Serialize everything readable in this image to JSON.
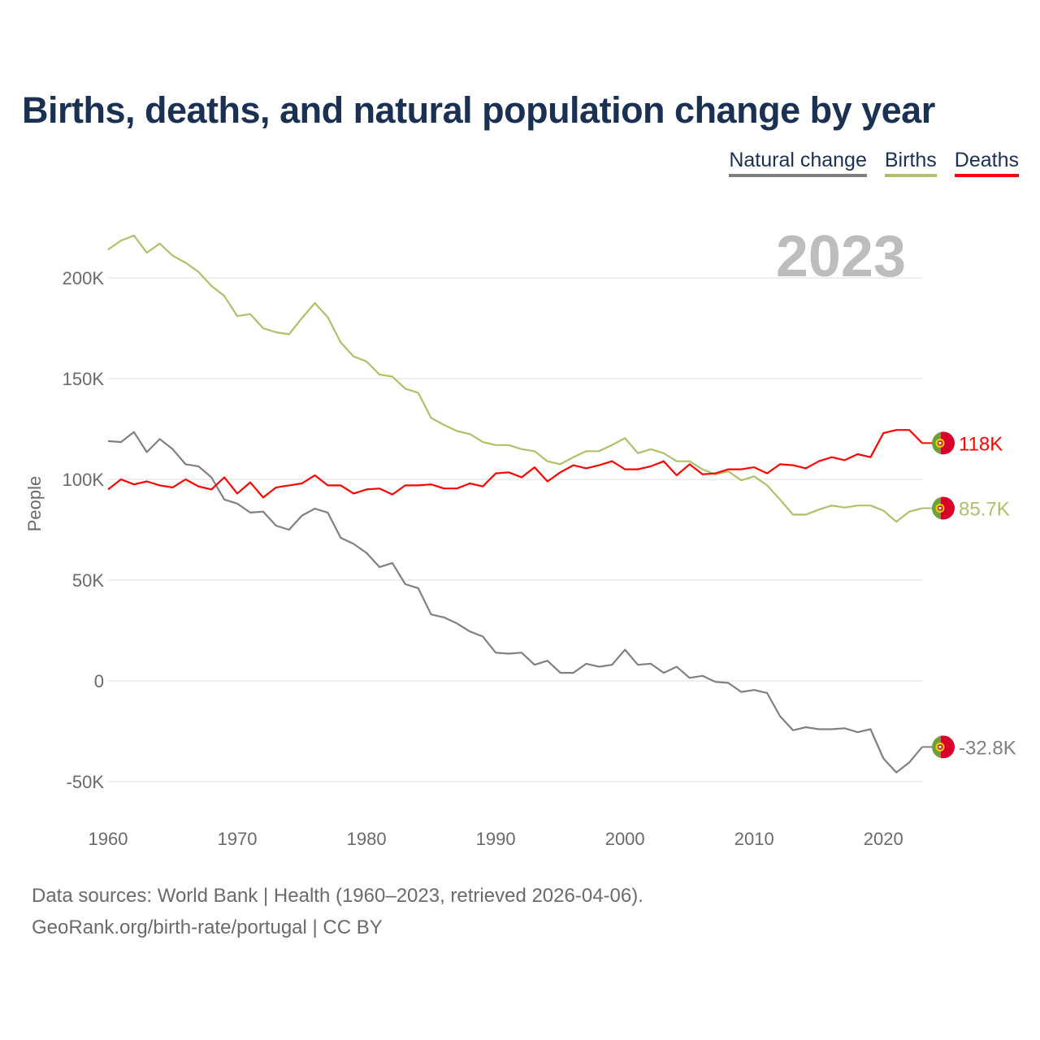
{
  "chart_data": {
    "type": "line",
    "title": "Births, deaths, and natural population change by year",
    "xlabel": "",
    "ylabel": "People",
    "ylim": [
      -50000,
      200000
    ],
    "xlim": [
      1960,
      2023
    ],
    "yticks": [
      {
        "v": -50000,
        "label": "-50K"
      },
      {
        "v": 0,
        "label": "0"
      },
      {
        "v": 50000,
        "label": "50K"
      },
      {
        "v": 100000,
        "label": "100K"
      },
      {
        "v": 150000,
        "label": "150K"
      },
      {
        "v": 200000,
        "label": "200K"
      }
    ],
    "xticks": [
      "1960",
      "1970",
      "1980",
      "1990",
      "2000",
      "2010",
      "2020"
    ],
    "year_label": "2023",
    "legend_placement": "top-right",
    "x_start": 1960,
    "series": [
      {
        "name": "Natural change",
        "color": "#808080",
        "end_label": "-32.8K",
        "values": [
          119,
          118.5,
          123.5,
          113.5,
          120,
          115,
          107.5,
          106.5,
          101,
          90,
          88,
          83.5,
          84,
          77,
          75,
          82,
          85.5,
          83.5,
          71,
          68,
          63.5,
          56.5,
          58.5,
          48,
          46,
          33,
          31.5,
          28.5,
          24.5,
          22,
          14,
          13.5,
          14,
          8,
          10,
          4,
          4,
          8.5,
          7,
          8,
          15.5,
          8,
          8.5,
          4,
          7,
          1.5,
          2.5,
          -0.5,
          -1,
          -5.5,
          -4.5,
          -6,
          -17.5,
          -24.5,
          -23,
          -24,
          -24,
          -23.5,
          -25.5,
          -24,
          -38.5,
          -45.5,
          -40.5,
          -32.8
        ]
      },
      {
        "name": "Births",
        "color": "#acc16a",
        "end_label": "85.7K",
        "values": [
          214,
          218.5,
          221,
          212.5,
          217,
          211,
          207.5,
          203,
          196,
          191,
          181,
          182,
          175,
          173,
          172,
          180,
          187.5,
          180.5,
          168,
          161,
          158.5,
          152,
          151,
          145,
          143,
          130.5,
          127,
          124,
          122.5,
          118.5,
          117,
          117,
          115,
          114,
          109,
          107.5,
          111,
          114,
          114,
          117,
          120.5,
          113,
          115,
          113,
          109,
          109,
          105,
          102.5,
          104,
          99.5,
          101.5,
          97,
          90,
          82.5,
          82.5,
          85,
          87,
          86,
          87,
          87,
          84.5,
          79,
          84,
          85.7
        ]
      },
      {
        "name": "Deaths",
        "color": "#ff0000",
        "end_label": "118K",
        "values": [
          95,
          100,
          97.5,
          99,
          97,
          96,
          100,
          96.5,
          95,
          101,
          93,
          98.5,
          91,
          96,
          97,
          98,
          102,
          97,
          97,
          93,
          95,
          95.5,
          92.5,
          97,
          97,
          97.5,
          95.5,
          95.5,
          98,
          96.5,
          103,
          103.5,
          101,
          106,
          99,
          103.5,
          107,
          105.5,
          107,
          109,
          105,
          105,
          106.5,
          109,
          102,
          107.5,
          102.5,
          103,
          105,
          105,
          106,
          103,
          107.5,
          107,
          105.5,
          109,
          111,
          109.5,
          112.5,
          111,
          123,
          124.5,
          124.5,
          118
        ]
      }
    ],
    "value_unit": "thousands"
  },
  "legend": [
    "Natural change",
    "Births",
    "Deaths"
  ],
  "footer": {
    "line1": "Data sources: World Bank | Health (1960–2023, retrieved 2026-04-06).",
    "line2": "GeoRank.org/birth-rate/portugal | CC BY"
  }
}
